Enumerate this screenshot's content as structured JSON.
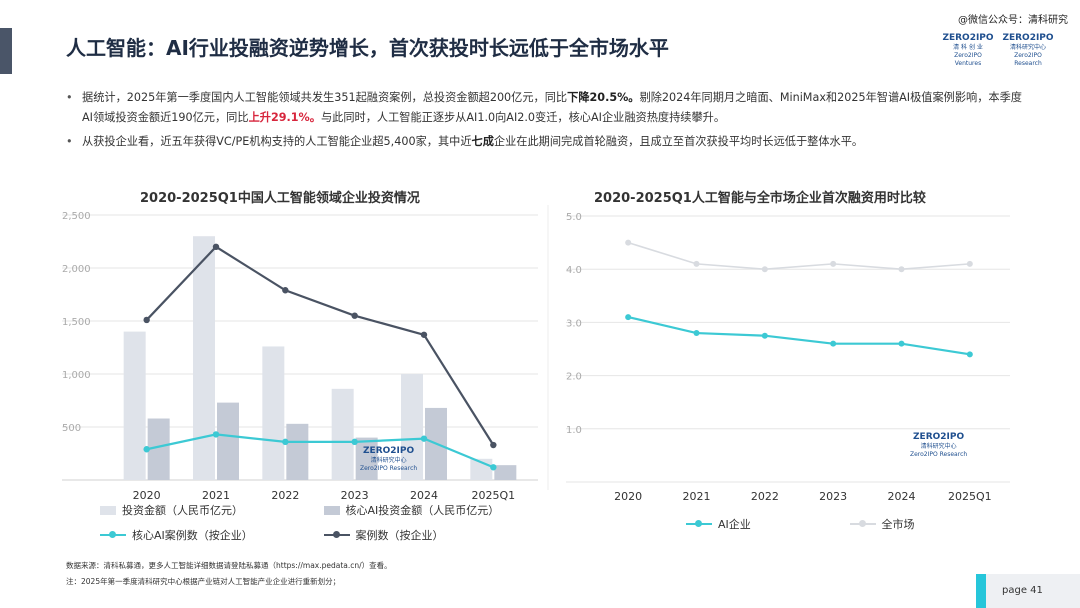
{
  "header": {
    "title": "人工智能：AI行业投融资逆势增长，首次获投时长远低于全市场水平",
    "wechat": "@微信公众号：清科研究",
    "logo1_main": "ZERO2IPO",
    "logo1_sub": "清 科 创 业",
    "logo1_en": "Zero2IPO Ventures",
    "logo2_main": "ZERO2IPO",
    "logo2_sub": "清科研究中心",
    "logo2_en": "Zero2IPO Research"
  },
  "bullets": {
    "b1_a": "据统计，2025年第一季度国内人工智能领域共发生351起融资案例，总投资金额超200亿元，同比",
    "b1_down": "下降20.5%。",
    "b1_b": "剔除2024年同期月之暗面、MiniMax和2025年智谱AI极值案例影响，本季度AI领域投资金额近190亿元，同比",
    "b1_up": "上升29.1%。",
    "b1_c": "与此同时，人工智能正逐步从AI1.0向AI2.0变迁，核心AI企业融资热度持续攀升。",
    "b2_a": "从获投企业看，近五年获得VC/PE机构支持的人工智能企业超5,400家，其中近",
    "b2_strong": "七成",
    "b2_b": "企业在此期间完成首轮融资，且成立至首次获投平均时长远低于整体水平。"
  },
  "watermark": {
    "main": "ZERO2IPO",
    "sub": "清科研究中心",
    "en": "Zero2IPO Research"
  },
  "chart_data": [
    {
      "type": "bar",
      "title": "2020-2025Q1中国人工智能领域企业投资情况",
      "categories": [
        "2020",
        "2021",
        "2022",
        "2023",
        "2024",
        "2025Q1"
      ],
      "ylim": [
        0,
        2500
      ],
      "yticks": [
        "500",
        "1,000",
        "1,500",
        "2,000",
        "2,500"
      ],
      "grid": true,
      "legend_position": "bottom",
      "colors": {
        "invest": "#dfe3ea",
        "core_invest": "#c4cad6",
        "core_cases": "#3cc9d4",
        "cases": "#4a5363"
      },
      "series": [
        {
          "name": "投资金额（人民币亿元）",
          "kind": "bar",
          "values": [
            1400,
            2300,
            1260,
            860,
            1000,
            200
          ]
        },
        {
          "name": "核心AI投资金额（人民币亿元）",
          "kind": "bar",
          "values": [
            580,
            730,
            530,
            400,
            680,
            140
          ]
        },
        {
          "name": "核心AI案例数（按企业）",
          "kind": "line",
          "values": [
            290,
            430,
            360,
            360,
            390,
            120
          ]
        },
        {
          "name": "案例数（按企业）",
          "kind": "line",
          "values": [
            1510,
            2200,
            1790,
            1550,
            1370,
            330
          ]
        }
      ]
    },
    {
      "type": "line",
      "title": "2020-2025Q1人工智能与全市场企业首次融资用时比较",
      "categories": [
        "2020",
        "2021",
        "2022",
        "2023",
        "2024",
        "2025Q1"
      ],
      "ylim": [
        0,
        5.0
      ],
      "yticks": [
        "1.0",
        "2.0",
        "3.0",
        "4.0",
        "5.0"
      ],
      "grid": true,
      "legend_position": "bottom",
      "colors": {
        "ai": "#3cc9d4",
        "market": "#d8dbe0"
      },
      "series": [
        {
          "name": "AI企业",
          "values": [
            3.1,
            2.8,
            2.75,
            2.6,
            2.6,
            2.4
          ]
        },
        {
          "name": "全市场",
          "values": [
            4.5,
            4.1,
            4.0,
            4.1,
            4.0,
            4.1
          ]
        }
      ]
    }
  ],
  "footnotes": {
    "source": "数据来源：清科私募通，更多人工智能详细数据请登陆私募通（https://max.pedata.cn/）查看。",
    "note": "注：2025年第一季度清科研究中心根据产业链对人工智能产业企业进行重新划分；"
  },
  "page": {
    "label": "page  41"
  }
}
